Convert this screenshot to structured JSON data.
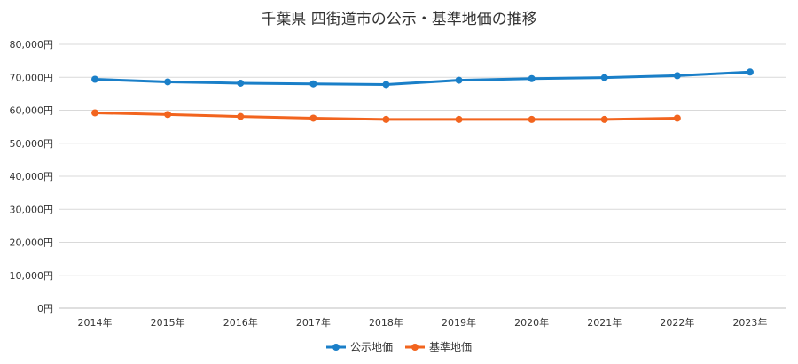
{
  "chart_data": {
    "type": "line",
    "title": "千葉県 四街道市の公示・基準地価の推移",
    "categories": [
      "2014年",
      "2015年",
      "2016年",
      "2017年",
      "2018年",
      "2019年",
      "2020年",
      "2021年",
      "2022年",
      "2023年"
    ],
    "y_ticks": [
      "0円",
      "10,000円",
      "20,000円",
      "30,000円",
      "40,000円",
      "50,000円",
      "60,000円",
      "70,000円",
      "80,000円"
    ],
    "ylim": [
      0,
      80000
    ],
    "grid": true,
    "legend_position": "bottom",
    "series": [
      {
        "name": "公示地価",
        "color": "#1a7fc8",
        "values": [
          69400,
          68600,
          68200,
          68000,
          67800,
          69100,
          69600,
          69900,
          70500,
          71600
        ]
      },
      {
        "name": "基準地価",
        "color": "#f2641e",
        "values": [
          59200,
          58700,
          58100,
          57600,
          57200,
          57200,
          57200,
          57200,
          57600,
          null
        ]
      }
    ]
  }
}
